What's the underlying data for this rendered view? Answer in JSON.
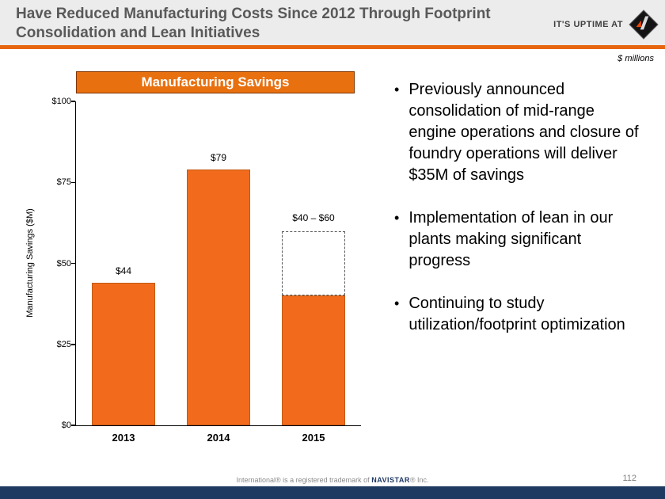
{
  "slide": {
    "title": "Have Reduced Manufacturing Costs Since 2012 Through Footprint Consolidation and Lean Initiatives",
    "brand_tagline": "IT'S UPTIME AT",
    "units_note": "$ millions",
    "page_number": "112",
    "footer_pre": "International® is a registered trademark of",
    "footer_brand": "NAVISTAR",
    "footer_post": "® Inc."
  },
  "bullets": [
    "Previously announced consolidation of mid-range engine operations and closure of foundry operations will deliver $35M of savings",
    "Implementation of lean in our plants making significant progress",
    "Continuing to study utilization/footprint optimization"
  ],
  "chart_data": {
    "type": "bar",
    "title": "Manufacturing Savings",
    "ylabel": "Manufacturing Savings ($M)",
    "categories": [
      "2013",
      "2014",
      "2015"
    ],
    "values": [
      44,
      79,
      40
    ],
    "bar_labels": [
      "$44",
      "$79",
      ""
    ],
    "range_bar": {
      "category": "2015",
      "low": 40,
      "high": 60,
      "label": "$40 – $60"
    },
    "yticks": [
      "$0",
      "$25",
      "$50",
      "$75",
      "$100"
    ],
    "ylim": [
      0,
      100
    ],
    "grid": false,
    "legend": false,
    "bar_color": "#F26B1D",
    "bar_border_color": "#C05A11",
    "accent_color": "#E8650F",
    "banner_color": "#E8700F",
    "footer_bar_color": "#1F3A60"
  }
}
